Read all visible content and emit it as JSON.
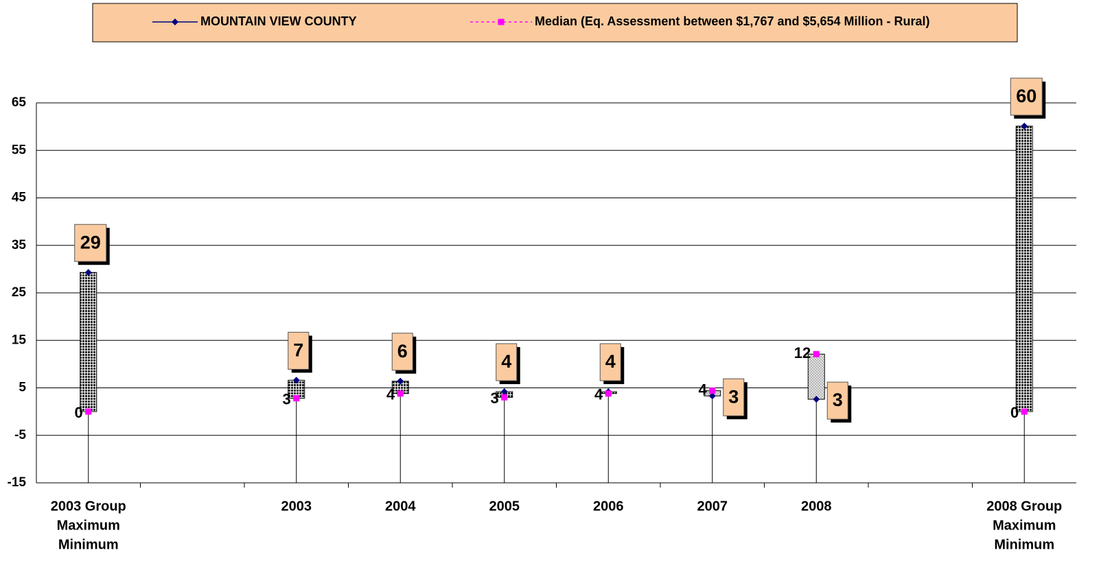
{
  "chart_data": {
    "type": "line",
    "categories": [
      [
        "2003 Group",
        "Maximum",
        "Minimum"
      ],
      null,
      "2003",
      "2004",
      "2005",
      "2006",
      "2007",
      "2008",
      null,
      [
        "2008 Group",
        "Maximum",
        "Minimum"
      ]
    ],
    "series": [
      {
        "name": "MOUNTAIN VIEW COUNTY",
        "color": "#000080",
        "marker": "diamond",
        "dashed": false,
        "values": [
          29.3,
          null,
          6.6,
          6.4,
          4.2,
          4.2,
          3.3,
          2.6,
          null,
          60.1
        ],
        "value_labels": [
          "29",
          null,
          "7",
          "6",
          "4",
          "4",
          "3",
          "3",
          null,
          "60"
        ]
      },
      {
        "name": "Median (Eq. Assessment between $1,767 and $5,654 Million - Rural)",
        "color": "#ff00ff",
        "marker": "square",
        "dashed": true,
        "values": [
          0,
          null,
          2.8,
          3.8,
          3.0,
          3.8,
          4.4,
          12.1,
          null,
          0
        ],
        "value_labels": [
          "0",
          null,
          "3",
          "4",
          "3",
          "4",
          "4",
          "12",
          null,
          "0"
        ]
      }
    ],
    "ylim": [
      -15,
      65
    ],
    "yticks": [
      -15,
      -5,
      5,
      15,
      25,
      35,
      45,
      55,
      65
    ],
    "grid": true,
    "legend": "top",
    "up_down_bars": true,
    "drop_lines": true
  }
}
